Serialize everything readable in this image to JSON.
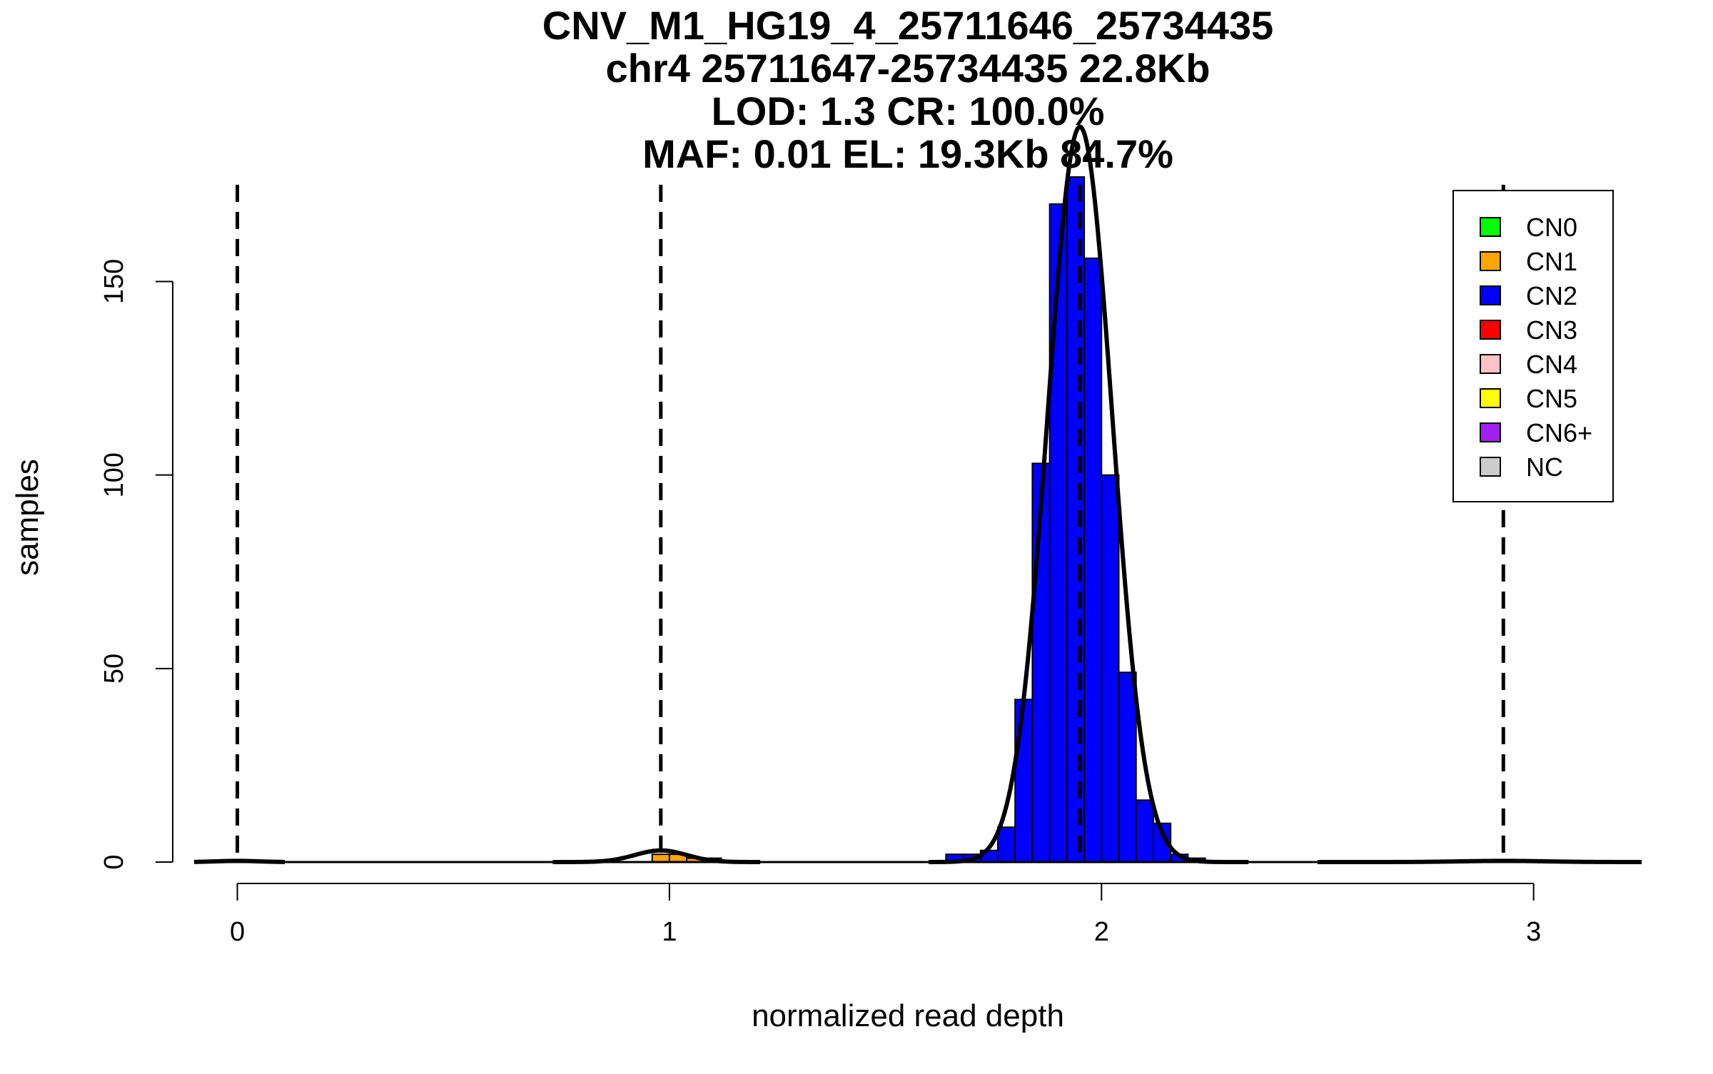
{
  "chart_data": {
    "type": "bar",
    "title_lines": [
      "CNV_M1_HG19_4_25711646_25734435",
      "chr4 25711647-25734435 22.8Kb",
      "LOD: 1.3 CR: 100.0%",
      "MAF: 0.01 EL: 19.3Kb 84.7%"
    ],
    "xlabel": "normalized read depth",
    "ylabel": "samples",
    "xlim": [
      -0.1,
      3.25
    ],
    "ylim": [
      0,
      177
    ],
    "x_ticks": [
      {
        "value": 0,
        "label": "0"
      },
      {
        "value": 1,
        "label": "1"
      },
      {
        "value": 2,
        "label": "2"
      },
      {
        "value": 3,
        "label": "3"
      }
    ],
    "y_ticks": [
      {
        "value": 0,
        "label": "0"
      },
      {
        "value": 50,
        "label": "50"
      },
      {
        "value": 100,
        "label": "100"
      },
      {
        "value": 150,
        "label": "150"
      }
    ],
    "bin_width": 0.04,
    "bars": [
      {
        "x0": 0.96,
        "count": 2,
        "series": "CN1"
      },
      {
        "x0": 1.0,
        "count": 2,
        "series": "CN1"
      },
      {
        "x0": 1.04,
        "count": 1,
        "series": "CN1"
      },
      {
        "x0": 1.08,
        "count": 1,
        "series": "CN1"
      },
      {
        "x0": 1.64,
        "count": 2,
        "series": "CN2"
      },
      {
        "x0": 1.68,
        "count": 2,
        "series": "CN2"
      },
      {
        "x0": 1.72,
        "count": 3,
        "series": "CN2"
      },
      {
        "x0": 1.76,
        "count": 9,
        "series": "CN2"
      },
      {
        "x0": 1.8,
        "count": 42,
        "series": "CN2"
      },
      {
        "x0": 1.84,
        "count": 103,
        "series": "CN2"
      },
      {
        "x0": 1.88,
        "count": 170,
        "series": "CN2"
      },
      {
        "x0": 1.92,
        "count": 177,
        "series": "CN2"
      },
      {
        "x0": 1.96,
        "count": 156,
        "series": "CN2"
      },
      {
        "x0": 2.0,
        "count": 100,
        "series": "CN2"
      },
      {
        "x0": 2.04,
        "count": 49,
        "series": "CN2"
      },
      {
        "x0": 2.08,
        "count": 16,
        "series": "CN2"
      },
      {
        "x0": 2.12,
        "count": 10,
        "series": "CN2"
      },
      {
        "x0": 2.16,
        "count": 2,
        "series": "CN2"
      },
      {
        "x0": 2.2,
        "count": 1,
        "series": "CN2"
      }
    ],
    "density_curves": [
      {
        "series": "CN0",
        "mean": 0.0,
        "sd": 0.05,
        "peak": 0.3,
        "from": -0.1,
        "to": 0.11
      },
      {
        "series": "CN1",
        "mean": 0.98,
        "sd": 0.06,
        "peak": 3,
        "from": 0.73,
        "to": 1.21
      },
      {
        "series": "CN2",
        "mean": 1.95,
        "sd": 0.075,
        "peak": 190,
        "from": 1.6,
        "to": 2.34
      },
      {
        "series": "CN3",
        "mean": 2.93,
        "sd": 0.1,
        "peak": 0.3,
        "from": 2.5,
        "to": 3.25
      }
    ],
    "vlines": [
      0.0,
      0.98,
      1.95,
      2.93
    ],
    "legend": {
      "position": "top-right",
      "entries": [
        {
          "label": "CN0",
          "color": "#00ff00"
        },
        {
          "label": "CN1",
          "color": "#ffa500"
        },
        {
          "label": "CN2",
          "color": "#0000ff"
        },
        {
          "label": "CN3",
          "color": "#ff0000"
        },
        {
          "label": "CN4",
          "color": "#ffc0cb"
        },
        {
          "label": "CN5",
          "color": "#ffff00"
        },
        {
          "label": "CN6+",
          "color": "#a020f0"
        },
        {
          "label": "NC",
          "color": "#cccccc"
        }
      ]
    }
  }
}
